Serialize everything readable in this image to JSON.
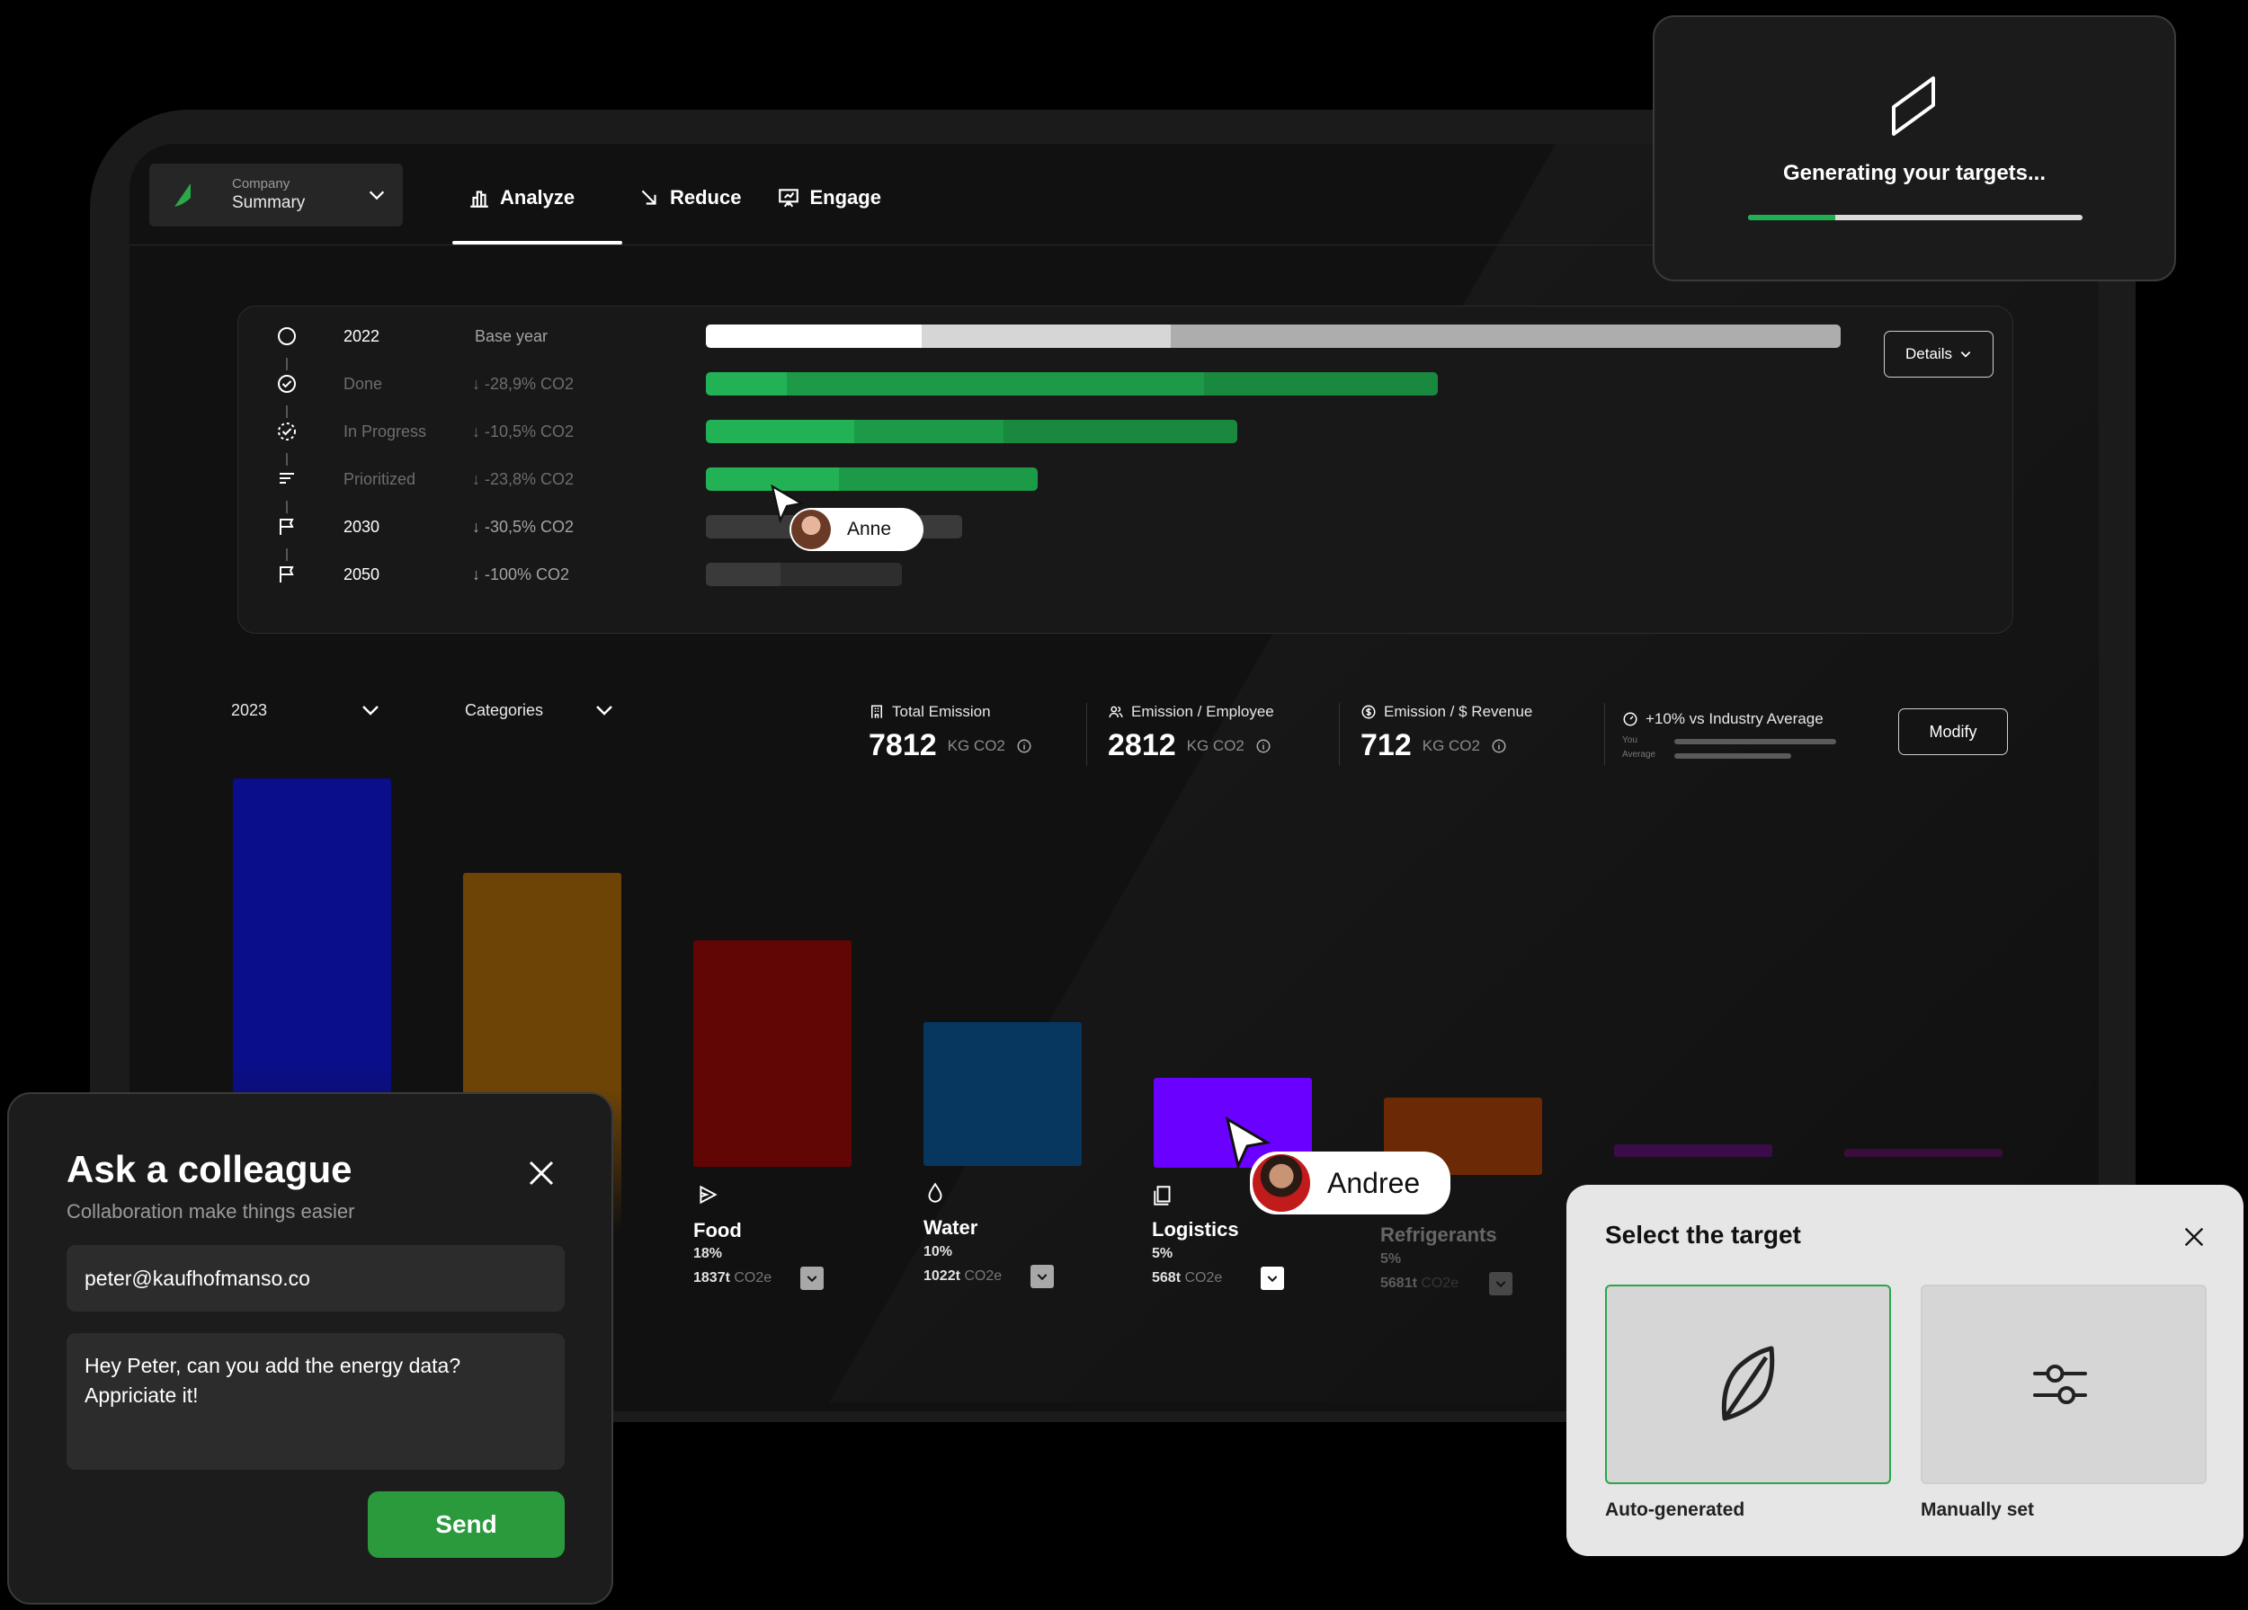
{
  "nav": {
    "company_label": "Company",
    "company_value": "Summary",
    "tabs": [
      {
        "label": "Analyze",
        "icon": "bar-chart-icon",
        "active": true
      },
      {
        "label": "Reduce",
        "icon": "arrow-down-right-icon",
        "active": false
      },
      {
        "label": "Engage",
        "icon": "presentation-icon",
        "active": false
      }
    ]
  },
  "targets": {
    "details_label": "Details",
    "rows": [
      {
        "year": "2022",
        "change": "Base year",
        "icon": "circle-icon",
        "fraction": 1.0
      },
      {
        "year": "Done",
        "change": "-28,9% CO2",
        "icon": "check-circle-icon",
        "fraction": 0.645
      },
      {
        "year": "In Progress",
        "change": "-10,5% CO2",
        "icon": "progress-circle-icon",
        "fraction": 0.468
      },
      {
        "year": "Prioritized",
        "change": "-23,8% CO2",
        "icon": "list-icon",
        "fraction": 0.292
      },
      {
        "year": "2030",
        "change": "-30,5% CO2",
        "icon": "flag-icon",
        "fraction": 0.226
      },
      {
        "year": "2050",
        "change": "-100% CO2",
        "icon": "flag-icon",
        "fraction": 0.173
      }
    ]
  },
  "cursor_anne": {
    "name": "Anne"
  },
  "cursor_andree": {
    "name": "Andree"
  },
  "filters": {
    "year": "2023",
    "category": "Categories"
  },
  "stats": [
    {
      "label": "Total Emission",
      "value": "7812",
      "unit": "KG CO2",
      "icon": "building-icon"
    },
    {
      "label": "Emission / Employee",
      "value": "2812",
      "unit": "KG CO2",
      "icon": "people-icon"
    },
    {
      "label": "Emission / $ Revenue",
      "value": "712",
      "unit": "KG CO2",
      "icon": "dollar-circle-icon"
    }
  ],
  "benchmark": {
    "label": "+10% vs Industry Average",
    "you_label": "You",
    "avg_label": "Average",
    "you_fraction": 1.0,
    "avg_fraction": 0.72
  },
  "modify_label": "Modify",
  "chart_data": {
    "type": "bar",
    "categories": [
      "",
      "",
      "Food",
      "Water",
      "Logistics",
      "Refrigerants",
      "",
      ""
    ],
    "values": [
      100,
      75,
      60,
      38,
      25,
      20,
      3,
      2
    ],
    "colors": [
      "#0a0e8a",
      "#6e4406",
      "#620505",
      "#07365f",
      "#6a00ff",
      "#6b2a05",
      "#3a0d4a",
      "#3a0d3a"
    ],
    "labels": [
      {
        "name": "Food",
        "pct": "18%",
        "total": "1837t",
        "unit": "CO2e",
        "icon": "food-icon"
      },
      {
        "name": "Water",
        "pct": "10%",
        "total": "1022t",
        "unit": "CO2e",
        "icon": "drop-icon"
      },
      {
        "name": "Logistics",
        "pct": "5%",
        "total": "568t",
        "unit": "CO2e",
        "icon": "box-icon"
      },
      {
        "name": "Refrigerants",
        "pct": "5%",
        "total": "5681t",
        "unit": "CO2e",
        "icon": "snowflake-icon"
      }
    ]
  },
  "gen_card": {
    "text": "Generating your targets...",
    "progress": 0.26
  },
  "ask": {
    "title": "Ask a colleague",
    "subtitle": "Collaboration make things easier",
    "email": "peter@kaufhofmanso.co",
    "message": "Hey Peter, can you add the energy data?\nAppriciate it!",
    "send_label": "Send"
  },
  "select_target": {
    "title": "Select the target",
    "options": [
      {
        "label": "Auto-generated",
        "icon": "leaf-icon",
        "selected": true
      },
      {
        "label": "Manually set",
        "icon": "sliders-icon",
        "selected": false
      }
    ]
  },
  "colors": {
    "accent_green": "#1fb04f",
    "bar_green_dark": "#1d8f3c"
  }
}
